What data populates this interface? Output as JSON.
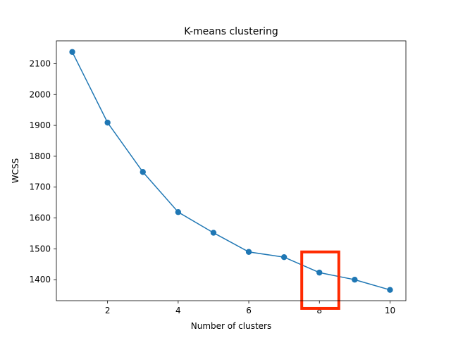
{
  "chart_data": {
    "type": "line",
    "title": "K-means clustering",
    "xlabel": "Number of clusters",
    "ylabel": "WCSS",
    "x": [
      1,
      2,
      3,
      4,
      5,
      6,
      7,
      8,
      9,
      10
    ],
    "series": [
      {
        "values": [
          2138,
          1909,
          1749,
          1619,
          1552,
          1490,
          1473,
          1423,
          1400,
          1367
        ],
        "color": "#1f77b4",
        "marker": "circle"
      }
    ],
    "xlim": [
      0.55,
      10.45
    ],
    "ylim": [
      1332,
      2174
    ],
    "xticks": [
      2,
      4,
      6,
      8,
      10
    ],
    "yticks": [
      1400,
      1500,
      1600,
      1700,
      1800,
      1900,
      2000,
      2100
    ],
    "grid": false,
    "legend": "none",
    "annotations": [
      {
        "type": "highlight-box",
        "color": "#ff2a00",
        "x_range": [
          7.5,
          8.55
        ],
        "y_range": [
          1307,
          1490
        ]
      }
    ]
  }
}
